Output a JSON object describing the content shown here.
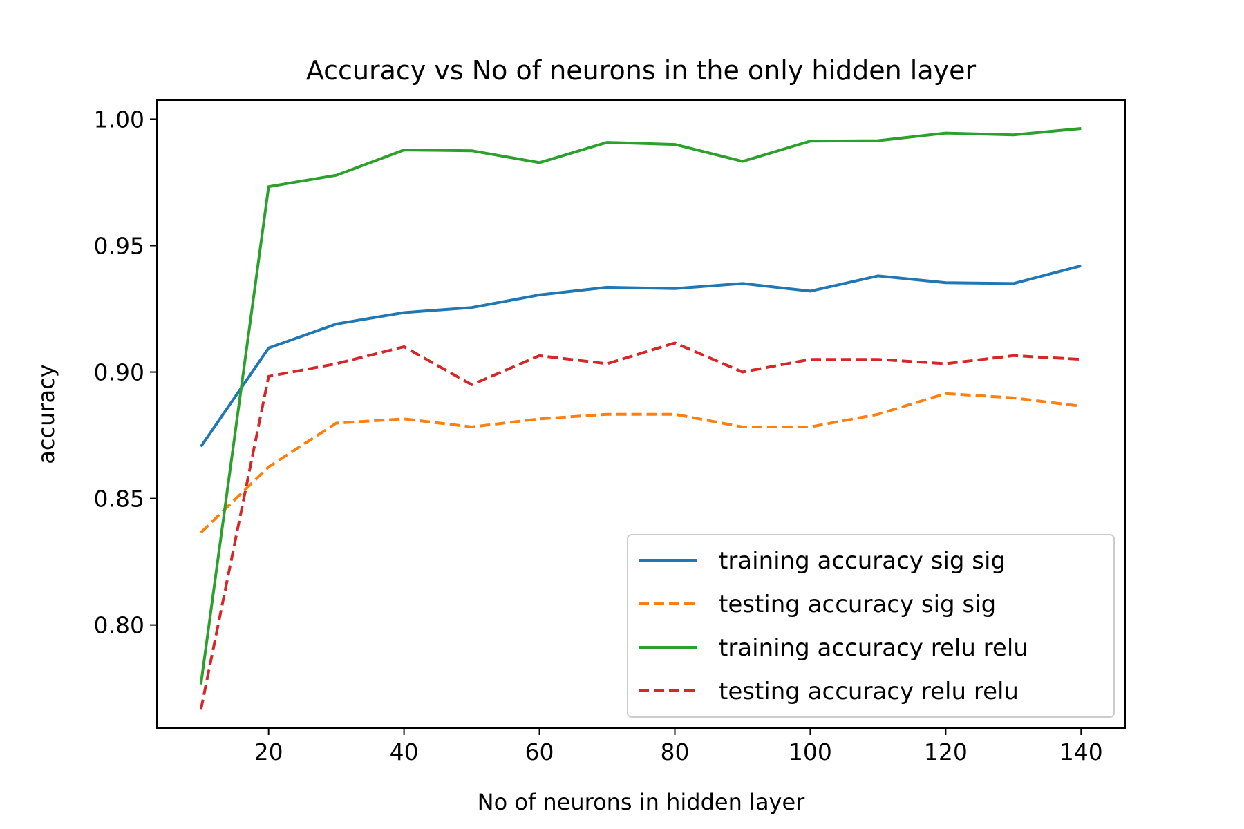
{
  "chart_data": {
    "type": "line",
    "title": "Accuracy vs No of neurons in the only hidden layer",
    "xlabel": "No of neurons in hidden layer",
    "ylabel": "accuracy",
    "xlim": [
      3.5,
      146.5
    ],
    "ylim": [
      0.7592,
      1.0075
    ],
    "xticks": [
      20,
      40,
      60,
      80,
      100,
      120,
      140
    ],
    "xtick_labels": [
      "20",
      "40",
      "60",
      "80",
      "100",
      "120",
      "140"
    ],
    "yticks": [
      0.8,
      0.85,
      0.9,
      0.95,
      1.0
    ],
    "ytick_labels": [
      "0.80",
      "0.85",
      "0.90",
      "0.95",
      "1.00"
    ],
    "grid": false,
    "legend_position": "lower-right",
    "x": [
      10,
      20,
      30,
      40,
      50,
      60,
      70,
      80,
      90,
      100,
      110,
      120,
      130,
      140
    ],
    "series": [
      {
        "name": "training accuracy sig sig",
        "color": "#1f77b4",
        "linestyle": "solid",
        "values": [
          0.8705,
          0.9095,
          0.919,
          0.9235,
          0.9255,
          0.9305,
          0.9335,
          0.933,
          0.935,
          0.932,
          0.938,
          0.9353,
          0.935,
          0.942
        ]
      },
      {
        "name": "testing accuracy sig sig",
        "color": "#ff7f0e",
        "linestyle": "dashed",
        "values": [
          0.8365,
          0.8625,
          0.8798,
          0.8815,
          0.8783,
          0.8815,
          0.8833,
          0.8833,
          0.8783,
          0.8783,
          0.8833,
          0.8915,
          0.8898,
          0.8865
        ]
      },
      {
        "name": "training accuracy relu relu",
        "color": "#2ca02c",
        "linestyle": "solid",
        "values": [
          0.7765,
          0.9733,
          0.9778,
          0.9878,
          0.9875,
          0.9828,
          0.9908,
          0.99,
          0.9833,
          0.9913,
          0.9915,
          0.9945,
          0.9938,
          0.9963
        ]
      },
      {
        "name": "testing accuracy relu relu",
        "color": "#d62728",
        "linestyle": "dashed",
        "values": [
          0.7665,
          0.8983,
          0.9033,
          0.91,
          0.895,
          0.9065,
          0.9033,
          0.9115,
          0.9,
          0.905,
          0.905,
          0.9033,
          0.9065,
          0.905
        ]
      }
    ]
  }
}
